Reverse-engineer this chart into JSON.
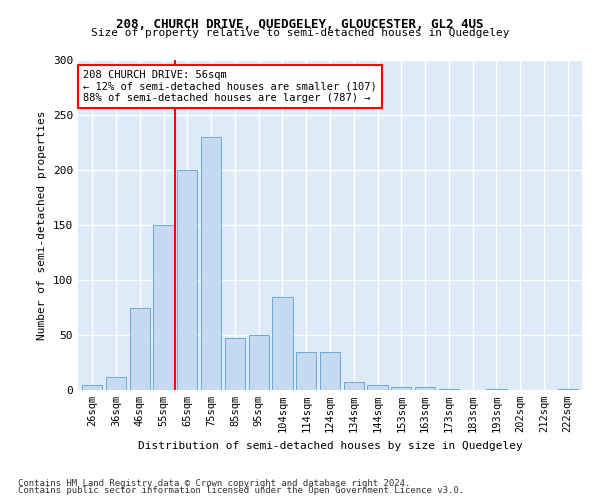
{
  "title1": "208, CHURCH DRIVE, QUEDGELEY, GLOUCESTER, GL2 4US",
  "title2": "Size of property relative to semi-detached houses in Quedgeley",
  "xlabel": "Distribution of semi-detached houses by size in Quedgeley",
  "ylabel": "Number of semi-detached properties",
  "categories": [
    "26sqm",
    "36sqm",
    "46sqm",
    "55sqm",
    "65sqm",
    "75sqm",
    "85sqm",
    "95sqm",
    "104sqm",
    "114sqm",
    "124sqm",
    "134sqm",
    "144sqm",
    "153sqm",
    "163sqm",
    "173sqm",
    "183sqm",
    "193sqm",
    "202sqm",
    "212sqm",
    "222sqm"
  ],
  "values": [
    5,
    12,
    75,
    150,
    200,
    230,
    47,
    50,
    85,
    35,
    35,
    7,
    5,
    3,
    3,
    1,
    0,
    1,
    0,
    0,
    1
  ],
  "bar_color": "#c5d9f0",
  "bar_edge_color": "#6aaad4",
  "bg_color": "#deeaf8",
  "grid_color": "#ffffff",
  "red_line_x": 3.5,
  "annotation_text": "208 CHURCH DRIVE: 56sqm\n← 12% of semi-detached houses are smaller (107)\n88% of semi-detached houses are larger (787) →",
  "footer1": "Contains HM Land Registry data © Crown copyright and database right 2024.",
  "footer2": "Contains public sector information licensed under the Open Government Licence v3.0.",
  "ylim": [
    0,
    300
  ],
  "yticks": [
    0,
    50,
    100,
    150,
    200,
    250,
    300
  ]
}
